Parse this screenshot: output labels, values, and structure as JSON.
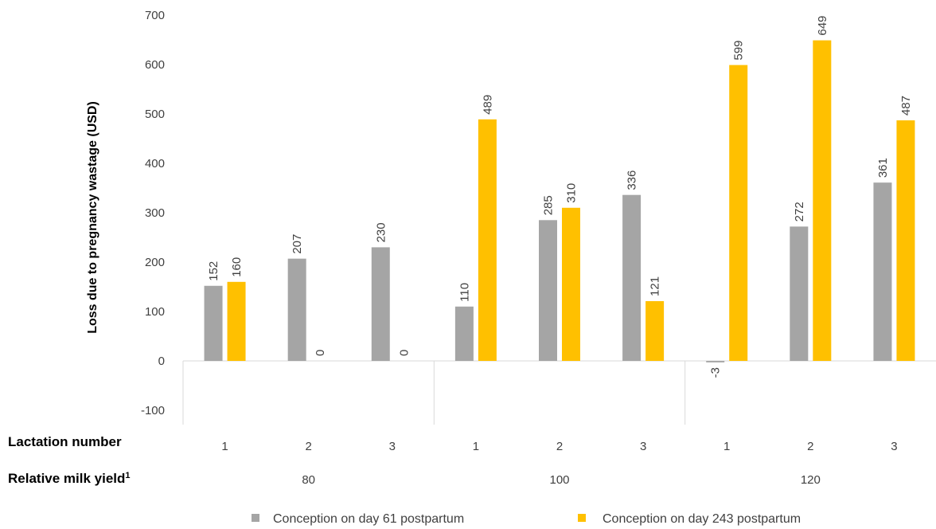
{
  "chart_data": {
    "type": "bar",
    "ylabel": "Loss due to pregnancy wastage (USD)",
    "ylim": [
      -100,
      700
    ],
    "yticks": [
      -100,
      0,
      100,
      200,
      300,
      400,
      500,
      600,
      700
    ],
    "grid": false,
    "legend_position": "bottom",
    "row_headers": {
      "lactation": "Lactation number",
      "yield_prefix": "Relative milk yield",
      "yield_superscript": "1"
    },
    "categories": [
      "1",
      "2",
      "3",
      "1",
      "2",
      "3",
      "1",
      "2",
      "3"
    ],
    "groups": [
      {
        "label": "80",
        "count": 3
      },
      {
        "label": "100",
        "count": 3
      },
      {
        "label": "120",
        "count": 3
      }
    ],
    "series": [
      {
        "name": "Conception on day 61 postpartum",
        "color": "#a5a5a5",
        "values": [
          152,
          207,
          230,
          110,
          285,
          336,
          -3,
          272,
          361
        ]
      },
      {
        "name": "Conception on day 243 postpartum",
        "color": "#ffc000",
        "values": [
          160,
          0,
          0,
          489,
          310,
          121,
          599,
          649,
          487
        ]
      }
    ]
  }
}
